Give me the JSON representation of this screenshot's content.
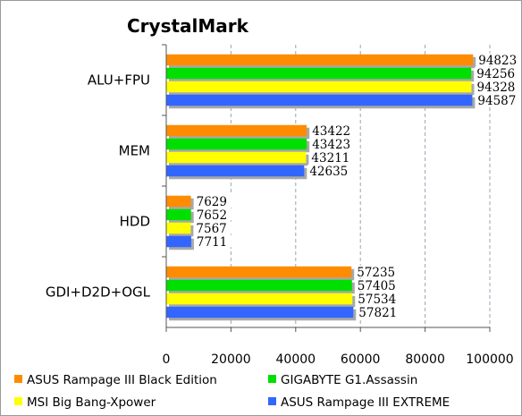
{
  "chart_data": {
    "type": "bar",
    "orientation": "horizontal",
    "title": "CrystalMark",
    "categories": [
      "ALU+FPU",
      "MEM",
      "HDD",
      "GDI+D2D+OGL"
    ],
    "series": [
      {
        "name": "ASUS Rampage III Black Edition",
        "color": "#ff8c00",
        "values": [
          94823,
          43422,
          7629,
          57235
        ]
      },
      {
        "name": "GIGABYTE G1.Assassin",
        "color": "#00e000",
        "values": [
          94256,
          43423,
          7652,
          57405
        ]
      },
      {
        "name": "MSI Big Bang-Xpower",
        "color": "#ffff00",
        "values": [
          94328,
          43211,
          7567,
          57534
        ]
      },
      {
        "name": "ASUS Rampage III EXTREME",
        "color": "#3366ff",
        "values": [
          94587,
          42635,
          7711,
          57821
        ]
      }
    ],
    "xlim": [
      0,
      100000
    ],
    "xticks": [
      0,
      20000,
      40000,
      60000,
      80000,
      100000
    ],
    "grid": "vertical-dashed",
    "legend_position": "bottom"
  }
}
